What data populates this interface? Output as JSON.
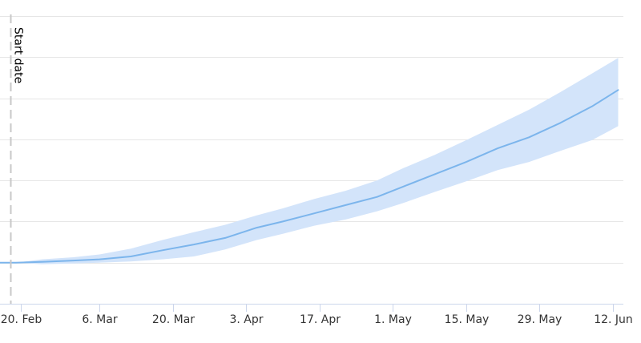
{
  "chart_data": {
    "type": "area",
    "title": "",
    "xlabel": "",
    "ylabel": "",
    "x_axis": {
      "type": "datetime",
      "min": "2020-02-16",
      "max": "2020-06-14",
      "tick_labels": [
        {
          "date": "2020-02-20",
          "label": "20. Feb"
        },
        {
          "date": "2020-03-06",
          "label": "6. Mar"
        },
        {
          "date": "2020-03-20",
          "label": "20. Mar"
        },
        {
          "date": "2020-04-03",
          "label": "3. Apr"
        },
        {
          "date": "2020-04-17",
          "label": "17. Apr"
        },
        {
          "date": "2020-05-01",
          "label": "1. May"
        },
        {
          "date": "2020-05-15",
          "label": "15. May"
        },
        {
          "date": "2020-05-29",
          "label": "29. May"
        },
        {
          "date": "2020-06-12",
          "label": "12. Jun"
        }
      ]
    },
    "y_axis": {
      "labels_shown": false,
      "gridline_count": 7,
      "min": 0,
      "max": 7
    },
    "grid": true,
    "legend": "none",
    "plot_band_line": {
      "date": "2020-02-18",
      "label": "Start date",
      "style": "dashed",
      "color": "#c8c8c8"
    },
    "series": [
      {
        "kind": "line",
        "color": "#7cb5ec",
        "points": [
          [
            "2020-02-14",
            1.0
          ],
          [
            "2020-02-19",
            1.0
          ],
          [
            "2020-02-24",
            1.02
          ],
          [
            "2020-03-01",
            1.05
          ],
          [
            "2020-03-06",
            1.08
          ],
          [
            "2020-03-12",
            1.15
          ],
          [
            "2020-03-18",
            1.3
          ],
          [
            "2020-03-24",
            1.44
          ],
          [
            "2020-03-30",
            1.6
          ],
          [
            "2020-04-05",
            1.85
          ],
          [
            "2020-04-10",
            2.0
          ],
          [
            "2020-04-16",
            2.2
          ],
          [
            "2020-04-22",
            2.4
          ],
          [
            "2020-04-28",
            2.6
          ],
          [
            "2020-05-03",
            2.85
          ],
          [
            "2020-05-09",
            3.15
          ],
          [
            "2020-05-15",
            3.45
          ],
          [
            "2020-05-21",
            3.78
          ],
          [
            "2020-05-27",
            4.05
          ],
          [
            "2020-06-02",
            4.4
          ],
          [
            "2020-06-08",
            4.8
          ],
          [
            "2020-06-13",
            5.2
          ]
        ]
      },
      {
        "kind": "range",
        "color": "#d3e4fa",
        "points": [
          [
            "2020-02-14",
            1.0,
            1.0
          ],
          [
            "2020-02-19",
            1.0,
            1.0
          ],
          [
            "2020-02-24",
            0.96,
            1.08
          ],
          [
            "2020-03-01",
            0.98,
            1.13
          ],
          [
            "2020-03-06",
            1.0,
            1.2
          ],
          [
            "2020-03-12",
            1.03,
            1.34
          ],
          [
            "2020-03-18",
            1.08,
            1.55
          ],
          [
            "2020-03-24",
            1.15,
            1.74
          ],
          [
            "2020-03-30",
            1.32,
            1.92
          ],
          [
            "2020-04-05",
            1.55,
            2.15
          ],
          [
            "2020-04-10",
            1.7,
            2.32
          ],
          [
            "2020-04-16",
            1.9,
            2.55
          ],
          [
            "2020-04-22",
            2.05,
            2.75
          ],
          [
            "2020-04-28",
            2.25,
            3.0
          ],
          [
            "2020-05-03",
            2.45,
            3.3
          ],
          [
            "2020-05-09",
            2.72,
            3.62
          ],
          [
            "2020-05-15",
            2.98,
            3.98
          ],
          [
            "2020-05-21",
            3.25,
            4.35
          ],
          [
            "2020-05-27",
            3.45,
            4.72
          ],
          [
            "2020-06-02",
            3.72,
            5.15
          ],
          [
            "2020-06-08",
            3.98,
            5.6
          ],
          [
            "2020-06-13",
            4.32,
            5.98
          ]
        ]
      }
    ]
  }
}
